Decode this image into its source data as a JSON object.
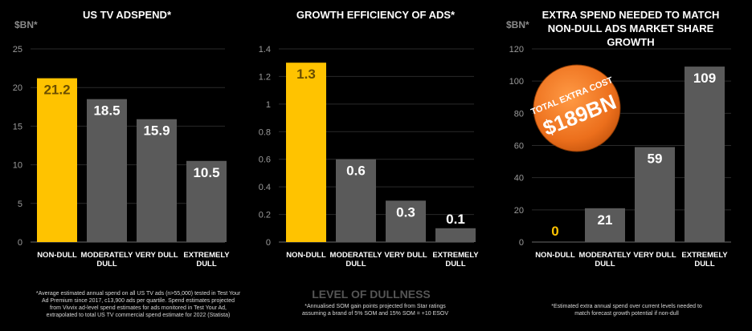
{
  "colors": {
    "highlight": "#ffc300",
    "bar": "#5a5a5a",
    "badge": "#f07a20",
    "text": "#ffffff"
  },
  "x_axis_title": "LEVEL OF DULLNESS",
  "badge": {
    "line1": "TOTAL EXTRA COST",
    "line2": "$189BN"
  },
  "chart_data": [
    {
      "type": "bar",
      "title": [
        "US TV ADSPEND*"
      ],
      "ylabel": "$BN*",
      "categories": [
        [
          "NON-DULL"
        ],
        [
          "MODERATELY",
          "DULL"
        ],
        [
          "VERY DULL"
        ],
        [
          "EXTREMELY",
          "DULL"
        ]
      ],
      "values": [
        21.2,
        18.5,
        15.9,
        10.5
      ],
      "labels": [
        "21.2",
        "18.5",
        "15.9",
        "10.5"
      ],
      "ylim": [
        0,
        25
      ],
      "yticks": [
        0,
        5,
        10,
        15,
        20,
        25
      ],
      "yticklabels": [
        "0",
        "5",
        "10",
        "15",
        "20",
        "25"
      ],
      "highlight": [
        0
      ],
      "footnote": [
        "*Average estimated annual spend on all US TV ads (n>55,000) tested in Test Your",
        "Ad Premium since 2017, c13,900 ads per quartile. Spend estimates projected",
        "from Vivvix ad-level spend estimates for ads monitored in Test Your Ad,",
        "extrapolated to total US TV commercial spend estimate for 2022 (Statista)"
      ]
    },
    {
      "type": "bar",
      "title": [
        "GROWTH EFFICIENCY OF ADS*"
      ],
      "ylabel": "",
      "categories": [
        [
          "NON-DULL"
        ],
        [
          "MODERATELY",
          "DULL"
        ],
        [
          "VERY DULL"
        ],
        [
          "EXTREMELY",
          "DULL"
        ]
      ],
      "values": [
        1.3,
        0.6,
        0.3,
        0.1
      ],
      "labels": [
        "1.3",
        "0.6",
        "0.3",
        "0.1"
      ],
      "ylim": [
        0,
        1.4
      ],
      "yticks": [
        0,
        0.2,
        0.4,
        0.6,
        0.8,
        1,
        1.2,
        1.4
      ],
      "yticklabels": [
        "0",
        "0.2",
        "0.4",
        "0.6",
        "0.8",
        "1",
        "1.2",
        "1.4"
      ],
      "highlight": [
        0
      ],
      "footnote": [
        "*Annualised SOM gain points projected from Star ratings",
        "assuming a brand of 5% SOM and 15% SOM = +10 ESOV"
      ]
    },
    {
      "type": "bar",
      "title": [
        "EXTRA SPEND NEEDED TO MATCH",
        "NON-DULL ADS MARKET SHARE",
        "GROWTH"
      ],
      "ylabel": "$BN*",
      "categories": [
        [
          "NON-DULL"
        ],
        [
          "MODERATELY",
          "DULL"
        ],
        [
          "VERY DULL"
        ],
        [
          "EXTREMELY",
          "DULL"
        ]
      ],
      "values": [
        0,
        21,
        59,
        109
      ],
      "labels": [
        "0",
        "21",
        "59",
        "109"
      ],
      "ylim": [
        0,
        120
      ],
      "yticks": [
        0,
        20,
        40,
        60,
        80,
        100,
        120
      ],
      "yticklabels": [
        "0",
        "20",
        "40",
        "60",
        "80",
        "100",
        "120"
      ],
      "highlight": [
        0
      ],
      "footnote": [
        "*Estimated extra annual spend over current levels needed to",
        "match forecast growth potential if non-dull"
      ]
    }
  ]
}
